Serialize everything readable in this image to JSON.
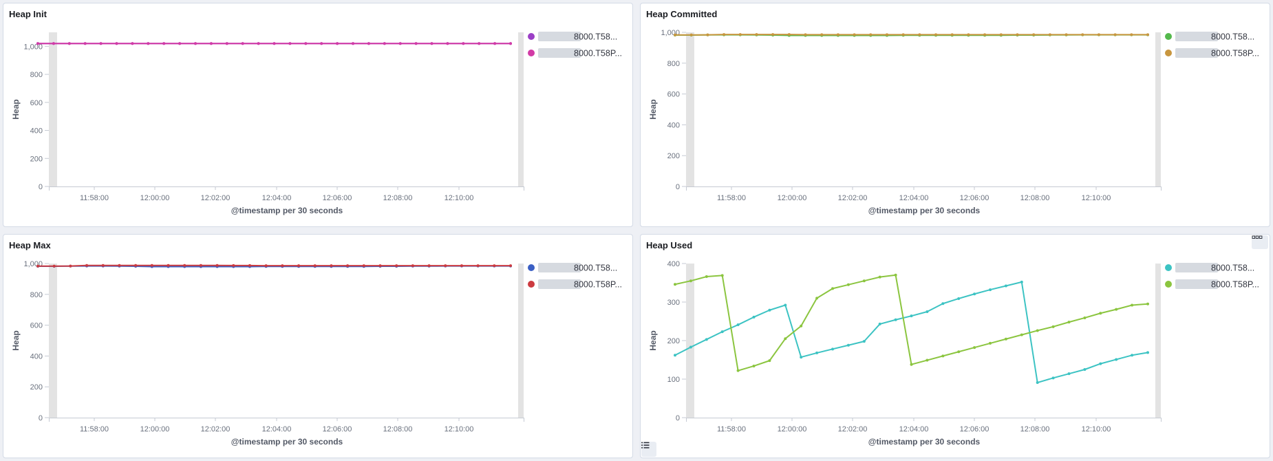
{
  "colors": {
    "gray_bar": "#e3e3e3",
    "axis": "#c5cad3",
    "blur": "#cfd3db"
  },
  "icons": {
    "panel_options": "ellipsis-icon",
    "legend_toggle": "list-icon"
  },
  "panels": [
    {
      "title": "Heap Init",
      "chart_data": {
        "type": "line",
        "xlabel": "@timestamp per 30 seconds",
        "ylabel": "Heap",
        "x_ticks": [
          "11:58:00",
          "12:00:00",
          "12:02:00",
          "12:04:00",
          "12:06:00",
          "12:08:00",
          "12:10:00"
        ],
        "y_ticks": [
          "0",
          "200",
          "400",
          "600",
          "800",
          "1,000"
        ],
        "ylim": [
          0,
          1100
        ],
        "series": [
          {
            "name": "8000.T58...",
            "color": "#9b3fc6",
            "values": [
              1020,
              1020,
              1020,
              1020,
              1020,
              1020,
              1020,
              1020,
              1020,
              1020,
              1020,
              1020,
              1020,
              1020,
              1020,
              1020,
              1020,
              1020,
              1020,
              1020,
              1020,
              1020,
              1020,
              1020,
              1020,
              1020,
              1020,
              1020,
              1020,
              1020,
              1020
            ]
          },
          {
            "name": "8000.T58P...",
            "color": "#d23ba6",
            "values": [
              1020,
              1020,
              1020,
              1020,
              1020,
              1020,
              1020,
              1020,
              1020,
              1020,
              1020,
              1020,
              1020,
              1020,
              1020,
              1020,
              1020,
              1020,
              1020,
              1020,
              1020,
              1020,
              1020,
              1020,
              1020,
              1020,
              1020,
              1020,
              1020,
              1020,
              1020
            ]
          }
        ]
      }
    },
    {
      "title": "Heap Committed",
      "chart_data": {
        "type": "line",
        "xlabel": "@timestamp per 30 seconds",
        "ylabel": "Heap",
        "x_ticks": [
          "11:58:00",
          "12:00:00",
          "12:02:00",
          "12:04:00",
          "12:06:00",
          "12:08:00",
          "12:10:00"
        ],
        "y_ticks": [
          "0",
          "200",
          "400",
          "600",
          "800",
          "1,000"
        ],
        "ylim": [
          0,
          1000
        ],
        "series": [
          {
            "name": "8000.T58...",
            "color": "#54b94c",
            "values": [
              982,
              982,
              983,
              984,
              984,
              983,
              982,
              980,
              980,
              980,
              980,
              980,
              980,
              980,
              981,
              981,
              981,
              981,
              981,
              981,
              981,
              982,
              982,
              983,
              983,
              984,
              984,
              984,
              984,
              984
            ]
          },
          {
            "name": "8000.T58P...",
            "color": "#c8963f",
            "values": [
              983,
              983,
              984,
              986,
              986,
              986,
              986,
              986,
              985,
              985,
              985,
              985,
              985,
              985,
              985,
              985,
              985,
              985,
              985,
              985,
              985,
              985,
              985,
              985,
              985,
              985,
              985,
              985,
              985,
              985
            ]
          }
        ]
      }
    },
    {
      "title": "Heap Max",
      "chart_data": {
        "type": "line",
        "xlabel": "@timestamp per 30 seconds",
        "ylabel": "Heap",
        "x_ticks": [
          "11:58:00",
          "12:00:00",
          "12:02:00",
          "12:04:00",
          "12:06:00",
          "12:08:00",
          "12:10:00"
        ],
        "y_ticks": [
          "0",
          "200",
          "400",
          "600",
          "800",
          "1,000"
        ],
        "ylim": [
          0,
          1000
        ],
        "series": [
          {
            "name": "8000.T58...",
            "color": "#3b5fc4",
            "values": [
              982,
              982,
              983,
              984,
              984,
              983,
              982,
              980,
              980,
              980,
              980,
              980,
              980,
              980,
              981,
              981,
              981,
              981,
              981,
              981,
              981,
              982,
              982,
              983,
              983,
              984,
              984,
              984,
              984,
              984
            ]
          },
          {
            "name": "8000.T58P...",
            "color": "#cc3b40",
            "values": [
              983,
              983,
              984,
              988,
              988,
              988,
              988,
              988,
              988,
              988,
              988,
              988,
              987,
              987,
              986,
              986,
              986,
              986,
              986,
              986,
              986,
              986,
              986,
              986,
              986,
              986,
              986,
              986,
              986,
              986
            ]
          }
        ]
      }
    },
    {
      "title": "Heap Used",
      "chart_data": {
        "type": "line",
        "xlabel": "@timestamp per 30 seconds",
        "ylabel": "Heap",
        "x_ticks": [
          "11:58:00",
          "12:00:00",
          "12:02:00",
          "12:04:00",
          "12:06:00",
          "12:08:00",
          "12:10:00"
        ],
        "y_ticks": [
          "0",
          "100",
          "200",
          "300",
          "400"
        ],
        "ylim": [
          0,
          400
        ],
        "series": [
          {
            "name": "8000.T58...",
            "color": "#3cc3c3",
            "values": [
              162,
              183,
              203,
              223,
              241,
              261,
              279,
              292,
              157,
              168,
              178,
              188,
              198,
              243,
              254,
              264,
              275,
              296,
              309,
              321,
              332,
              342,
              352,
              91,
              103,
              114,
              125,
              140,
              151,
              162,
              169
            ]
          },
          {
            "name": "8000.T58P...",
            "color": "#8bc53f",
            "values": [
              346,
              355,
              366,
              369,
              122,
              134,
              148,
              205,
              238,
              310,
              335,
              345,
              355,
              365,
              370,
              138,
              149,
              160,
              171,
              182,
              193,
              204,
              215,
              226,
              236,
              248,
              259,
              271,
              281,
              292,
              295
            ]
          }
        ]
      }
    }
  ]
}
